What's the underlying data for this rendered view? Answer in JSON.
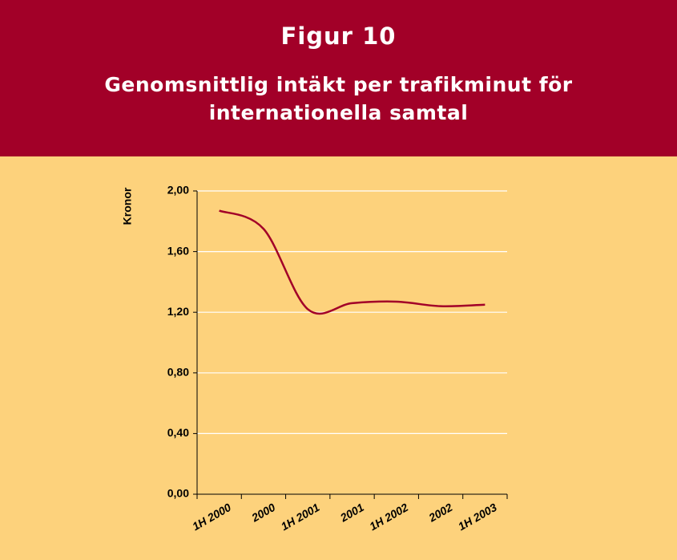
{
  "chart_data": {
    "type": "line",
    "title": "Figur 10",
    "subtitle": "Genomsnittlig intäkt per trafikminut för internationella samtal",
    "ylabel": "Kronor",
    "categories": [
      "1H 2000",
      "2000",
      "1H 2001",
      "2001",
      "1H 2002",
      "2002",
      "1H 2003"
    ],
    "series": [
      {
        "name": "Kronor",
        "color": "#a20028",
        "values": [
          1.87,
          1.75,
          1.22,
          1.26,
          1.27,
          1.24,
          1.25
        ]
      }
    ],
    "ylim": [
      0,
      2
    ],
    "yticks": [
      {
        "value": 0,
        "label": "0,00"
      },
      {
        "value": 0.4,
        "label": "0,40"
      },
      {
        "value": 0.8,
        "label": "0,80"
      },
      {
        "value": 1.2,
        "label": "1,20"
      },
      {
        "value": 1.6,
        "label": "1,60"
      },
      {
        "value": 2,
        "label": "2,00"
      }
    ],
    "grid": true
  }
}
